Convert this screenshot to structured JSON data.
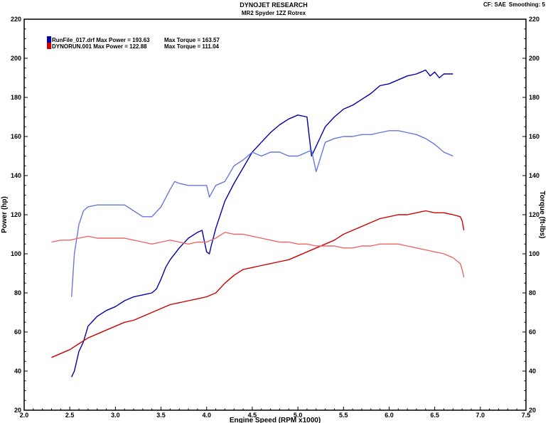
{
  "header": {
    "title": "DYNOJET RESEARCH",
    "subtitle": "MR2 Spyder 1ZZ Rotrex",
    "cf_label": "CF: SAE",
    "smoothing_label": "Smoothing: 5"
  },
  "legend": {
    "entries": [
      {
        "text": "RunFile_017.drf Max Power = 193.63",
        "torque_text": "Max Torque = 163.57",
        "color": "#0000aa"
      },
      {
        "text": "DYNORUN.001 Max Power = 122.88",
        "torque_text": "Max Torque = 111.04",
        "color": "#cc0000"
      }
    ]
  },
  "chart_data": {
    "type": "line",
    "title": "DYNOJET RESEARCH",
    "subtitle": "MR2 Spyder 1ZZ Rotrex",
    "xlabel": "Engine Speed (RPM x1000)",
    "ylabel": "Power (hp)",
    "y2label": "Torque (ft-lbs)",
    "xlim": [
      2.0,
      7.5
    ],
    "ylim": [
      20,
      220
    ],
    "y2lim": [
      20,
      220
    ],
    "xticks": [
      "2.0",
      "2.5",
      "3.0",
      "3.5",
      "4.0",
      "4.5",
      "5.0",
      "5.5",
      "6.0",
      "6.5",
      "7.0",
      "7.5"
    ],
    "yticks": [
      "20",
      "40",
      "60",
      "80",
      "100",
      "120",
      "140",
      "160",
      "180",
      "200",
      "220"
    ],
    "y2ticks": [
      "20",
      "40",
      "60",
      "80",
      "100",
      "120",
      "140",
      "160",
      "180",
      "200",
      "220"
    ],
    "grid": false,
    "legend_position": "top-left",
    "series": [
      {
        "name": "RunFile_017.drf Power",
        "color": "#0000aa",
        "x": [
          2.52,
          2.55,
          2.6,
          2.65,
          2.7,
          2.8,
          2.9,
          3.0,
          3.1,
          3.2,
          3.3,
          3.4,
          3.45,
          3.5,
          3.55,
          3.6,
          3.7,
          3.8,
          3.9,
          3.95,
          4.0,
          4.03,
          4.05,
          4.1,
          4.15,
          4.2,
          4.3,
          4.4,
          4.45,
          4.5,
          4.6,
          4.7,
          4.8,
          4.9,
          5.0,
          5.1,
          5.15,
          5.2,
          5.25,
          5.3,
          5.4,
          5.5,
          5.6,
          5.7,
          5.8,
          5.9,
          6.0,
          6.1,
          6.2,
          6.3,
          6.35,
          6.4,
          6.45,
          6.5,
          6.55,
          6.6,
          6.7
        ],
        "values": [
          37,
          40,
          50,
          55,
          63,
          68,
          71,
          73,
          76,
          78,
          79,
          80,
          82,
          87,
          93,
          97,
          103,
          108,
          111,
          112,
          101,
          100,
          104,
          113,
          120,
          127,
          136,
          144,
          148,
          152,
          157,
          162,
          166,
          169,
          171,
          170,
          150,
          155,
          160,
          165,
          170,
          174,
          176,
          179,
          182,
          186,
          187,
          189,
          191,
          192,
          193,
          194,
          191,
          193,
          190,
          192,
          192
        ]
      },
      {
        "name": "RunFile_017.drf Torque",
        "color": "#6677dd",
        "x": [
          2.52,
          2.55,
          2.6,
          2.65,
          2.7,
          2.8,
          2.9,
          3.0,
          3.1,
          3.2,
          3.3,
          3.4,
          3.5,
          3.6,
          3.65,
          3.7,
          3.8,
          3.9,
          4.0,
          4.03,
          4.1,
          4.2,
          4.3,
          4.4,
          4.45,
          4.5,
          4.6,
          4.7,
          4.8,
          4.9,
          5.0,
          5.05,
          5.1,
          5.15,
          5.2,
          5.3,
          5.4,
          5.5,
          5.6,
          5.7,
          5.8,
          5.9,
          6.0,
          6.1,
          6.2,
          6.3,
          6.4,
          6.5,
          6.6,
          6.7
        ],
        "values": [
          78,
          100,
          115,
          122,
          124,
          125,
          125,
          125,
          125,
          122,
          119,
          119,
          124,
          133,
          137,
          136,
          135,
          135,
          135,
          129,
          135,
          137,
          145,
          148,
          150,
          152,
          150,
          152,
          152,
          150,
          150,
          151,
          152,
          153,
          142,
          157,
          159,
          160,
          160,
          161,
          161,
          162,
          163,
          163,
          162,
          161,
          159,
          156,
          152,
          150
        ]
      },
      {
        "name": "DYNORUN.001 Power",
        "color": "#cc0000",
        "x": [
          2.3,
          2.4,
          2.5,
          2.6,
          2.7,
          2.8,
          2.9,
          3.0,
          3.1,
          3.2,
          3.3,
          3.4,
          3.5,
          3.6,
          3.7,
          3.8,
          3.9,
          4.0,
          4.1,
          4.2,
          4.3,
          4.4,
          4.5,
          4.6,
          4.7,
          4.8,
          4.9,
          5.0,
          5.1,
          5.2,
          5.3,
          5.4,
          5.5,
          5.6,
          5.7,
          5.8,
          5.9,
          6.0,
          6.1,
          6.2,
          6.3,
          6.4,
          6.5,
          6.6,
          6.7,
          6.78,
          6.8,
          6.82
        ],
        "values": [
          47,
          49,
          51,
          54,
          57,
          59,
          61,
          63,
          65,
          66,
          68,
          70,
          72,
          74,
          75,
          76,
          77,
          78,
          80,
          85,
          89,
          92,
          93,
          94,
          95,
          96,
          97,
          99,
          101,
          103,
          105,
          107,
          110,
          112,
          114,
          116,
          118,
          119,
          120,
          120,
          121,
          122,
          121,
          121,
          120,
          119,
          117,
          112
        ]
      },
      {
        "name": "DYNORUN.001 Torque",
        "color": "#ee6666",
        "x": [
          2.3,
          2.4,
          2.5,
          2.6,
          2.7,
          2.8,
          2.9,
          3.0,
          3.1,
          3.2,
          3.3,
          3.4,
          3.5,
          3.6,
          3.7,
          3.8,
          3.9,
          4.0,
          4.1,
          4.2,
          4.3,
          4.4,
          4.5,
          4.6,
          4.7,
          4.8,
          4.9,
          5.0,
          5.1,
          5.2,
          5.3,
          5.4,
          5.5,
          5.6,
          5.7,
          5.8,
          5.9,
          6.0,
          6.1,
          6.2,
          6.3,
          6.4,
          6.5,
          6.6,
          6.7,
          6.78,
          6.8,
          6.82
        ],
        "values": [
          106,
          107,
          107,
          108,
          109,
          108,
          108,
          108,
          108,
          107,
          106,
          105,
          106,
          107,
          106,
          105,
          106,
          106,
          108,
          111,
          110,
          110,
          109,
          108,
          107,
          106,
          106,
          105,
          105,
          104,
          104,
          104,
          103,
          103,
          104,
          104,
          105,
          105,
          105,
          104,
          103,
          102,
          101,
          100,
          98,
          95,
          92,
          88
        ]
      }
    ]
  }
}
